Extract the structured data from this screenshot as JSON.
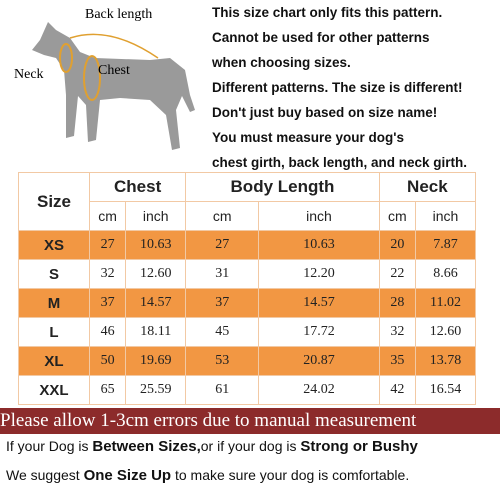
{
  "diagram": {
    "labels": {
      "back": "Back length",
      "neck": "Neck",
      "chest": "Chest"
    }
  },
  "notes": [
    "This size chart only fits this pattern.",
    "Cannot be used for other patterns",
    "when choosing sizes.",
    "Different patterns. The size is different!",
    "Don't just buy based on size name!",
    "You must measure your dog's",
    "chest girth, back length, and neck girth."
  ],
  "table": {
    "size_header": "Size",
    "groups": [
      "Chest",
      "Body Length",
      "Neck"
    ],
    "units": [
      "cm",
      "inch",
      "cm",
      "inch",
      "cm",
      "inch"
    ],
    "rows": [
      [
        "XS",
        "27",
        "10.63",
        "27",
        "10.63",
        "20",
        "7.87"
      ],
      [
        "S",
        "32",
        "12.60",
        "31",
        "12.20",
        "22",
        "8.66"
      ],
      [
        "M",
        "37",
        "14.57",
        "37",
        "14.57",
        "28",
        "11.02"
      ],
      [
        "L",
        "46",
        "18.11",
        "45",
        "17.72",
        "32",
        "12.60"
      ],
      [
        "XL",
        "50",
        "19.69",
        "53",
        "20.87",
        "35",
        "13.78"
      ],
      [
        "XXL",
        "65",
        "25.59",
        "61",
        "24.02",
        "42",
        "16.54"
      ]
    ]
  },
  "banner": "Please allow 1-3cm errors due to manual measurement",
  "footer": [
    [
      "If your Dog is ",
      "Between Sizes,",
      "or if your dog is ",
      "Strong or Bushy"
    ],
    [
      "We suggest ",
      "One Size Up",
      " to make sure your dog is comfortable."
    ]
  ]
}
